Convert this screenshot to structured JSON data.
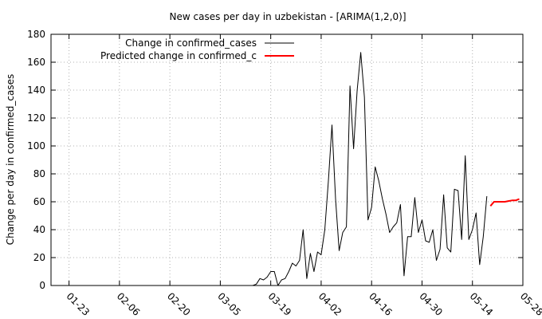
{
  "chart_data": {
    "type": "line",
    "title": "New cases per day in uzbekistan -  [ARIMA(1,2,0)]",
    "xlabel": "",
    "ylabel": "Change per day in confirmed_cases",
    "xlim": [
      "2020-01-18",
      "2020-05-28"
    ],
    "ylim": [
      0,
      180
    ],
    "x_ticks": [
      "01-23",
      "02-06",
      "02-20",
      "03-05",
      "03-19",
      "04-02",
      "04-16",
      "04-30",
      "05-14",
      "05-28"
    ],
    "y_ticks": [
      0,
      20,
      40,
      60,
      80,
      100,
      120,
      140,
      160,
      180
    ],
    "grid": true,
    "legend_position": "top-right",
    "series": [
      {
        "name": "Change in confirmed_cases",
        "color": "#000000",
        "x": [
          "2020-03-14",
          "2020-03-15",
          "2020-03-16",
          "2020-03-17",
          "2020-03-18",
          "2020-03-19",
          "2020-03-20",
          "2020-03-21",
          "2020-03-22",
          "2020-03-23",
          "2020-03-24",
          "2020-03-25",
          "2020-03-26",
          "2020-03-27",
          "2020-03-28",
          "2020-03-29",
          "2020-03-30",
          "2020-03-31",
          "2020-04-01",
          "2020-04-02",
          "2020-04-03",
          "2020-04-04",
          "2020-04-05",
          "2020-04-06",
          "2020-04-07",
          "2020-04-08",
          "2020-04-09",
          "2020-04-10",
          "2020-04-11",
          "2020-04-12",
          "2020-04-13",
          "2020-04-14",
          "2020-04-15",
          "2020-04-16",
          "2020-04-17",
          "2020-04-18",
          "2020-04-19",
          "2020-04-20",
          "2020-04-21",
          "2020-04-22",
          "2020-04-23",
          "2020-04-24",
          "2020-04-25",
          "2020-04-26",
          "2020-04-27",
          "2020-04-28",
          "2020-04-29",
          "2020-04-30",
          "2020-05-01",
          "2020-05-02",
          "2020-05-03",
          "2020-05-04",
          "2020-05-05",
          "2020-05-06",
          "2020-05-07",
          "2020-05-08",
          "2020-05-09",
          "2020-05-10",
          "2020-05-11",
          "2020-05-12",
          "2020-05-13",
          "2020-05-14",
          "2020-05-15",
          "2020-05-16",
          "2020-05-17",
          "2020-05-18"
        ],
        "values": [
          0,
          1,
          5,
          4,
          6,
          10,
          10,
          0,
          4,
          5,
          10,
          16,
          14,
          18,
          40,
          5,
          23,
          10,
          24,
          22,
          40,
          75,
          115,
          62,
          25,
          38,
          42,
          143,
          98,
          140,
          167,
          135,
          47,
          56,
          85,
          75,
          62,
          51,
          38,
          42,
          45,
          58,
          7,
          35,
          35,
          63,
          38,
          47,
          32,
          31,
          40,
          18,
          26,
          65,
          27,
          24,
          69,
          68,
          33,
          93,
          33,
          40,
          52,
          15,
          35,
          64
        ]
      },
      {
        "name": "Predicted change in confirmed_c",
        "color": "#ff0000",
        "x": [
          "2020-05-19",
          "2020-05-20",
          "2020-05-21",
          "2020-05-22",
          "2020-05-23",
          "2020-05-24",
          "2020-05-25",
          "2020-05-26",
          "2020-05-27"
        ],
        "values": [
          57,
          60,
          60,
          60,
          60,
          60.5,
          61,
          61,
          62
        ]
      }
    ]
  }
}
